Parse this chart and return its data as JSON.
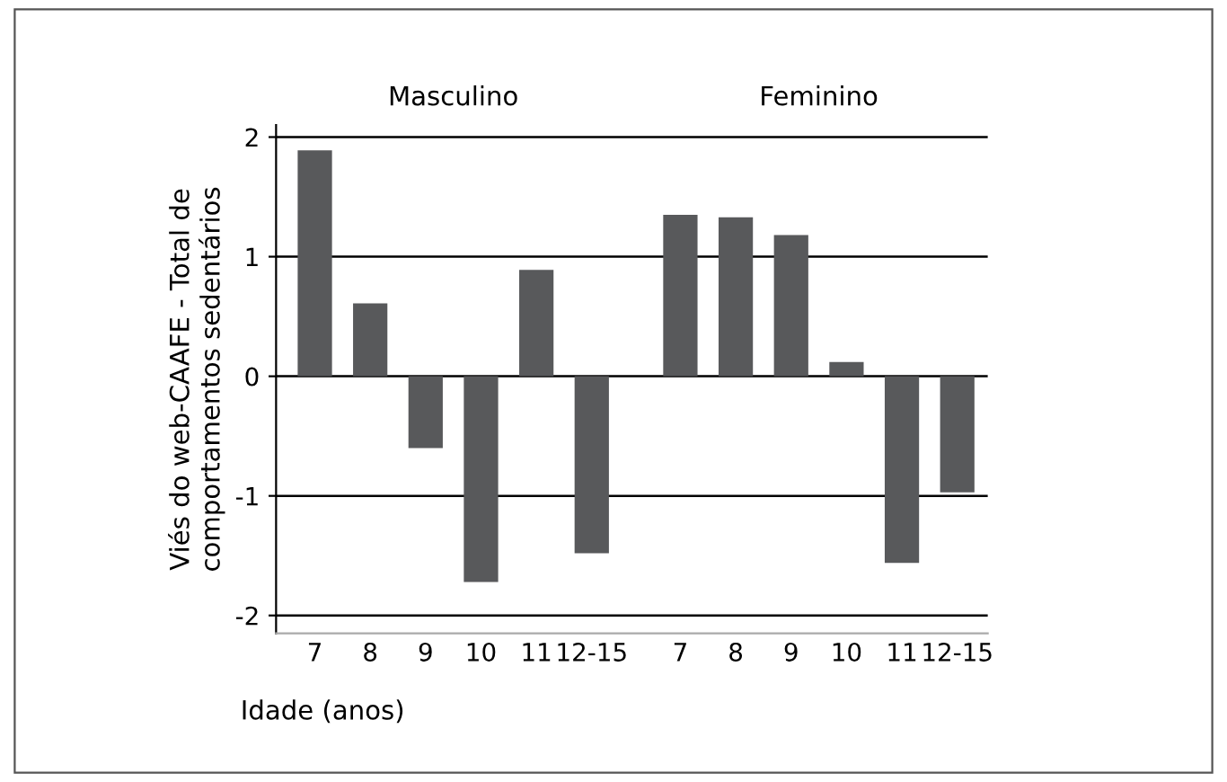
{
  "chart_data": {
    "type": "bar",
    "ylabel": "Viés do web-CAAFE - Total de\ncomportamentos sedentários",
    "xlabel": "Idade (anos)",
    "categories": [
      "7",
      "8",
      "9",
      "10",
      "11",
      "12-15",
      "7",
      "8",
      "9",
      "10",
      "11",
      "12-15"
    ],
    "values": [
      1.89,
      0.61,
      -0.6,
      -1.72,
      0.89,
      -1.48,
      1.35,
      1.33,
      1.18,
      0.12,
      -1.56,
      -0.97
    ],
    "color": "#58595b",
    "ylim": [
      -2.15,
      2.1
    ],
    "yticks": [
      -2,
      -1,
      0,
      1,
      2
    ],
    "grid": "y",
    "annotations": [
      "Masculino",
      "Feminino"
    ]
  }
}
